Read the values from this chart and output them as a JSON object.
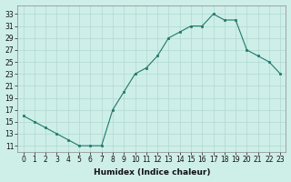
{
  "x": [
    0,
    1,
    2,
    3,
    4,
    5,
    6,
    7,
    8,
    9,
    10,
    11,
    12,
    13,
    14,
    15,
    16,
    17,
    18,
    19,
    20,
    21,
    22,
    23
  ],
  "y": [
    16,
    15,
    14,
    13,
    12,
    11,
    11,
    11,
    17,
    20,
    23,
    24,
    26,
    29,
    30,
    31,
    31,
    33,
    32,
    32,
    27,
    26,
    25,
    23
  ],
  "line_color": "#1e7a6a",
  "marker_color": "#1e7a6a",
  "bg_color": "#ceeee8",
  "grid_color": "#b0d8d2",
  "xlabel": "Humidex (Indice chaleur)",
  "ylabel_ticks": [
    11,
    13,
    15,
    17,
    19,
    21,
    23,
    25,
    27,
    29,
    31,
    33
  ],
  "ylim": [
    10.0,
    34.5
  ],
  "xlim": [
    -0.5,
    23.5
  ],
  "tick_fontsize": 5.5,
  "xlabel_fontsize": 6.5
}
